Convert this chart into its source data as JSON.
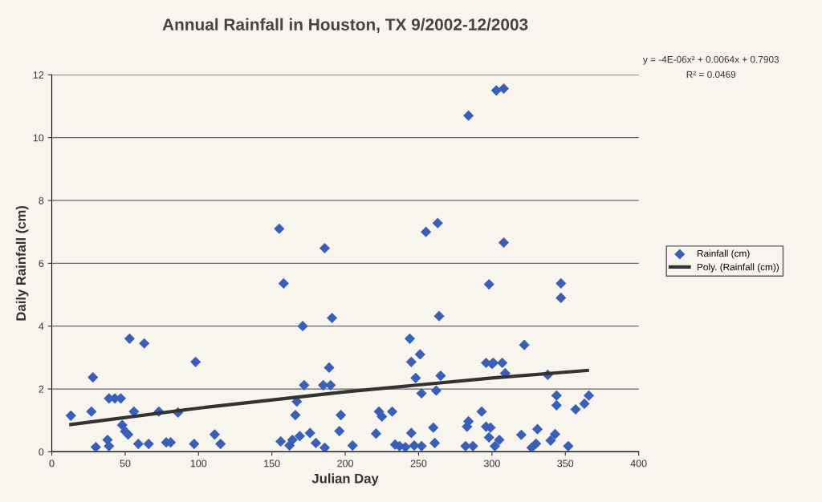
{
  "chart_data": {
    "type": "scatter",
    "title": "Annual Rainfall in Houston, TX 9/2002-12/2003",
    "xlabel": "Julian Day",
    "ylabel": "Daily Rainfall (cm)",
    "xlim": [
      0,
      400
    ],
    "xticks": [
      0,
      50,
      100,
      150,
      200,
      250,
      300,
      350,
      400
    ],
    "ylim": [
      0,
      12
    ],
    "yticks": [
      0,
      2,
      4,
      6,
      8,
      10,
      12
    ],
    "grid": "y",
    "legend": "right",
    "marker": "diamond",
    "annotations": [
      "y = -4E-06x² + 0.0064x + 0.7903",
      "R² = 0.0469"
    ],
    "series": [
      {
        "name": "Rainfall (cm)",
        "color": "#3a5fb8",
        "x": [
          13,
          27,
          28,
          30,
          38,
          39,
          39,
          43,
          47,
          48,
          50,
          52,
          53,
          56,
          59,
          63,
          66,
          73,
          78,
          81,
          86,
          98,
          97,
          111,
          115,
          155,
          158,
          156,
          162,
          164,
          166,
          167,
          169,
          171,
          172,
          176,
          180,
          186,
          185,
          190,
          189,
          191,
          186,
          197,
          196,
          205,
          221,
          223,
          225,
          232,
          234,
          237,
          241,
          244,
          245,
          245,
          251,
          248,
          252,
          247,
          252,
          255,
          263,
          262,
          265,
          264,
          260,
          261,
          284,
          303,
          308,
          282,
          283,
          284,
          287,
          293,
          296,
          300,
          301,
          298,
          296,
          299,
          298,
          302,
          305,
          307,
          309,
          308,
          320,
          322,
          327,
          330,
          331,
          338,
          340,
          343,
          344,
          344,
          347,
          347,
          352,
          357,
          363,
          366
        ],
        "values": [
          1.15,
          1.28,
          2.37,
          0.15,
          0.38,
          0.18,
          1.7,
          1.7,
          1.7,
          0.85,
          0.65,
          0.55,
          3.6,
          1.28,
          0.25,
          3.45,
          0.25,
          1.28,
          0.3,
          0.3,
          1.25,
          2.86,
          0.25,
          0.55,
          0.25,
          7.1,
          5.36,
          0.33,
          0.2,
          0.38,
          1.17,
          1.6,
          0.5,
          4.0,
          2.12,
          0.6,
          0.28,
          6.48,
          2.12,
          2.12,
          2.68,
          4.26,
          0.13,
          1.17,
          0.66,
          0.2,
          0.58,
          1.28,
          1.12,
          1.28,
          0.23,
          0.18,
          0.15,
          3.6,
          2.86,
          0.6,
          3.1,
          2.35,
          1.86,
          0.2,
          0.18,
          7.0,
          7.28,
          1.95,
          2.42,
          4.32,
          0.77,
          0.28,
          10.7,
          11.5,
          11.56,
          0.18,
          0.8,
          0.97,
          0.18,
          1.28,
          2.83,
          2.8,
          2.83,
          5.33,
          0.8,
          0.77,
          0.46,
          0.18,
          0.38,
          2.83,
          2.5,
          6.66,
          0.54,
          3.4,
          0.13,
          0.26,
          0.72,
          2.45,
          0.36,
          0.56,
          1.79,
          1.48,
          5.36,
          4.9,
          0.18,
          1.35,
          1.53,
          1.79
        ]
      },
      {
        "name": "Poly. (Rainfall (cm))",
        "type": "line",
        "color": "#333333",
        "marker": "none",
        "line_style": "solid",
        "x": [
          13,
          100,
          200,
          300,
          365
        ],
        "values": [
          0.87,
          1.39,
          1.91,
          2.35,
          2.59
        ]
      }
    ]
  }
}
